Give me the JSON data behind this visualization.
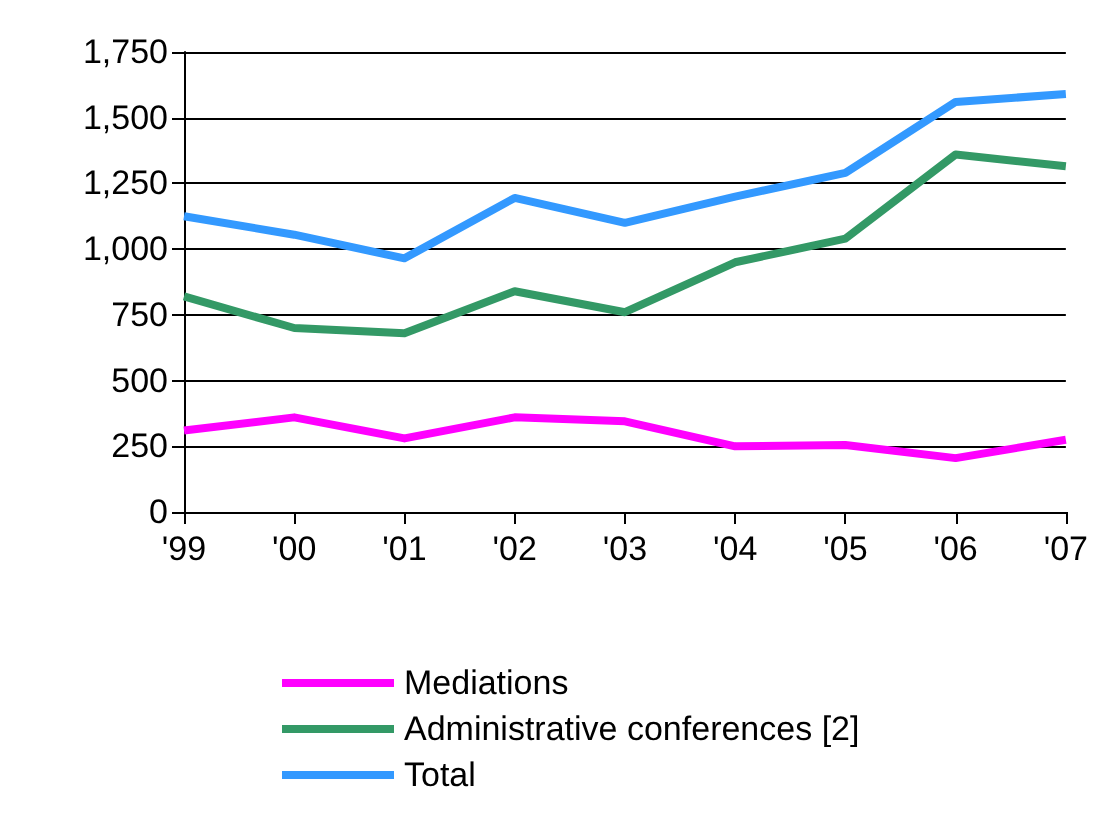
{
  "chart_data": {
    "type": "line",
    "categories": [
      "'99",
      "'00",
      "'01",
      "'02",
      "'03",
      "'04",
      "'05",
      "'06",
      "'07"
    ],
    "series": [
      {
        "name": "Mediations",
        "color": "#ff00ff",
        "values": [
          310,
          360,
          280,
          360,
          345,
          250,
          255,
          205,
          275
        ]
      },
      {
        "name": "Administrative conferences [2]",
        "color": "#339966",
        "values": [
          820,
          700,
          680,
          840,
          760,
          950,
          1040,
          1360,
          1315
        ]
      },
      {
        "name": "Total",
        "color": "#3399ff",
        "values": [
          1125,
          1055,
          965,
          1195,
          1100,
          1200,
          1290,
          1560,
          1590
        ]
      }
    ],
    "ylim": [
      0,
      1750
    ],
    "yticks": [
      0,
      250,
      500,
      750,
      {
        "value": 1000,
        "label": "1,000"
      },
      {
        "value": 1250,
        "label": "1,250"
      },
      {
        "value": 1500,
        "label": "1,500"
      },
      {
        "value": 1750,
        "label": "1,750"
      }
    ],
    "grid": "y",
    "legend": "bottom",
    "marker": "none",
    "line_style": "solid"
  }
}
